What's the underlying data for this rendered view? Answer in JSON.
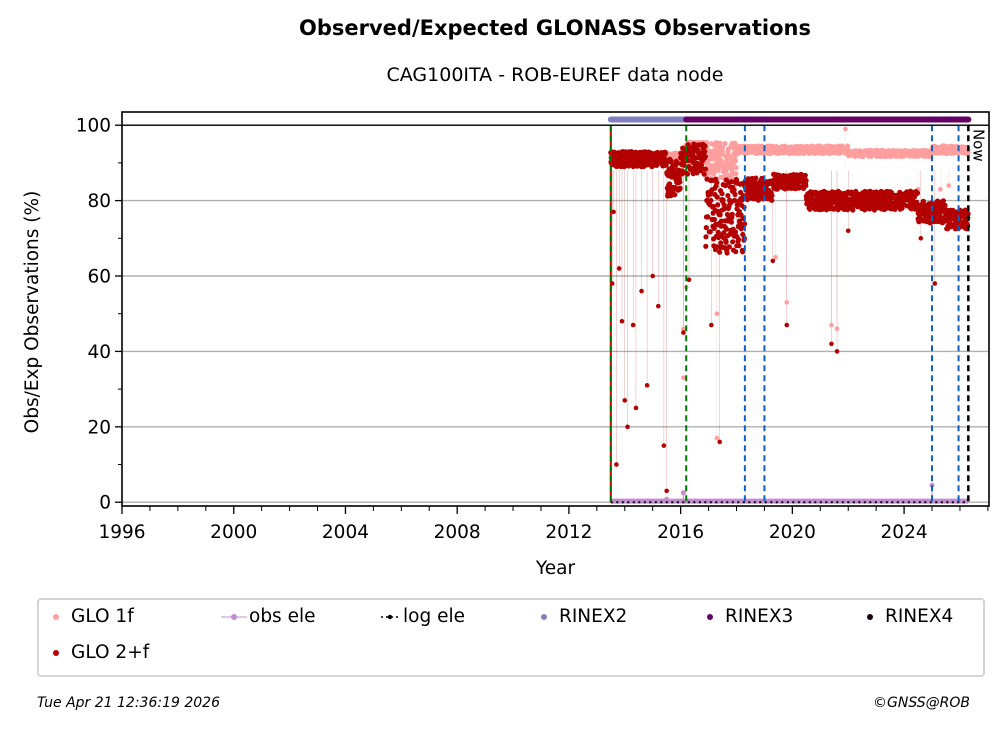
{
  "header": {
    "title": "Observed/Expected GLONASS Observations",
    "subtitle": "CAG100ITA - ROB-EUREF data node"
  },
  "footer": {
    "timestamp": "Tue Apr 21 12:36:19 2026",
    "copyright": "©GNSS@ROB"
  },
  "colors": {
    "glo1f": "#ff9e9e",
    "glo2f": "#b30000",
    "obs_ele": "#c38ccf",
    "log_ele": "#000000",
    "rinex2": "#8080c0",
    "rinex3": "#660066",
    "rinex4": "#1a001a",
    "receiver_change": "#007700",
    "antenna_change": "#1060c0",
    "grid": "#b0b0b0"
  },
  "chart_data": {
    "type": "scatter",
    "title": "Observed/Expected GLONASS Observations",
    "subtitle": "CAG100ITA - ROB-EUREF data node",
    "xlabel": "Year",
    "ylabel": "Obs/Exp Observations (%)",
    "xlim": [
      1996,
      2027.04
    ],
    "ylim": [
      -1,
      103.5
    ],
    "xticks": [
      "1996",
      "2000",
      "2004",
      "2008",
      "2012",
      "2016",
      "2020",
      "2024"
    ],
    "xtick_values": [
      1996,
      2000,
      2004,
      2008,
      2012,
      2016,
      2020,
      2024
    ],
    "yticks": [
      "0",
      "20",
      "40",
      "60",
      "80",
      "100"
    ],
    "ytick_values": [
      0,
      20,
      40,
      60,
      80,
      100
    ],
    "grid": "y",
    "now_label": "Now",
    "legend_position": "bottom",
    "legend": [
      {
        "key": "glo1f",
        "label": "GLO 1f"
      },
      {
        "key": "obs_ele",
        "label": "obs ele"
      },
      {
        "key": "log_ele",
        "label": "log ele"
      },
      {
        "key": "rinex2",
        "label": "RINEX2"
      },
      {
        "key": "rinex3",
        "label": "RINEX3"
      },
      {
        "key": "rinex4",
        "label": "RINEX4"
      },
      {
        "key": "glo2f",
        "label": "GLO 2+f"
      }
    ],
    "rinex_bars": [
      {
        "name": "RINEX2",
        "start": 2013.5,
        "end": 2016.2,
        "y": 101.5
      },
      {
        "name": "RINEX3",
        "start": 2016.2,
        "end": 2026.3,
        "y": 101.5
      }
    ],
    "event_lines": [
      {
        "type": "receiver",
        "x": 2013.5
      },
      {
        "type": "receiver",
        "x": 2016.2
      },
      {
        "type": "antenna",
        "x": 2018.3
      },
      {
        "type": "antenna",
        "x": 2019.0
      },
      {
        "type": "antenna",
        "x": 2025.0
      },
      {
        "type": "antenna",
        "x": 2025.95
      },
      {
        "type": "now",
        "x": 2026.3
      }
    ],
    "series": [
      {
        "name": "GLO 1f",
        "band_segments": [
          {
            "x0": 2013.5,
            "x1": 2016.2,
            "y": 91.5,
            "spread": 1.2
          },
          {
            "x0": 2016.2,
            "x1": 2016.9,
            "y": 94.5,
            "spread": 1.0
          },
          {
            "x0": 2016.9,
            "x1": 2018.0,
            "y": 90.5,
            "spread": 5.0
          },
          {
            "x0": 2018.0,
            "x1": 2022.0,
            "y": 93.5,
            "spread": 1.0
          },
          {
            "x0": 2022.0,
            "x1": 2025.0,
            "y": 92.5,
            "spread": 0.8
          },
          {
            "x0": 2025.0,
            "x1": 2026.3,
            "y": 93.5,
            "spread": 1.0
          }
        ],
        "outliers": [
          [
            2016.1,
            33
          ],
          [
            2016.1,
            46
          ],
          [
            2016.2,
            57
          ],
          [
            2017.3,
            17
          ],
          [
            2017.3,
            50
          ],
          [
            2019.4,
            65
          ],
          [
            2019.8,
            53
          ],
          [
            2021.4,
            47
          ],
          [
            2021.6,
            46
          ],
          [
            2021.9,
            99
          ],
          [
            2024.5,
            83
          ],
          [
            2025.3,
            83
          ],
          [
            2025.6,
            84
          ]
        ]
      },
      {
        "name": "GLO 2+f",
        "band_segments": [
          {
            "x0": 2013.5,
            "x1": 2015.5,
            "y": 91.0,
            "spread": 2.0
          },
          {
            "x0": 2015.5,
            "x1": 2016.0,
            "y": 86.0,
            "spread": 5.0
          },
          {
            "x0": 2016.0,
            "x1": 2016.9,
            "y": 91.0,
            "spread": 4.0
          },
          {
            "x0": 2016.9,
            "x1": 2018.3,
            "y": 76.0,
            "spread": 10.0
          },
          {
            "x0": 2018.3,
            "x1": 2019.3,
            "y": 83.0,
            "spread": 3.0
          },
          {
            "x0": 2019.3,
            "x1": 2020.5,
            "y": 85.0,
            "spread": 2.0
          },
          {
            "x0": 2020.5,
            "x1": 2024.5,
            "y": 80.0,
            "spread": 2.5
          },
          {
            "x0": 2024.5,
            "x1": 2025.5,
            "y": 77.0,
            "spread": 3.0
          },
          {
            "x0": 2025.5,
            "x1": 2026.3,
            "y": 75.0,
            "spread": 2.5
          }
        ],
        "outliers": [
          [
            2013.55,
            58
          ],
          [
            2013.6,
            77
          ],
          [
            2013.7,
            10
          ],
          [
            2013.8,
            62
          ],
          [
            2013.9,
            48
          ],
          [
            2014.0,
            27
          ],
          [
            2014.1,
            20
          ],
          [
            2014.3,
            47
          ],
          [
            2014.4,
            25
          ],
          [
            2014.6,
            56
          ],
          [
            2014.8,
            31
          ],
          [
            2015.0,
            60
          ],
          [
            2015.2,
            52
          ],
          [
            2015.4,
            15
          ],
          [
            2015.5,
            3
          ],
          [
            2016.1,
            45
          ],
          [
            2016.3,
            59
          ],
          [
            2017.1,
            47
          ],
          [
            2017.4,
            16
          ],
          [
            2018.0,
            68
          ],
          [
            2019.3,
            64
          ],
          [
            2019.8,
            47
          ],
          [
            2021.4,
            42
          ],
          [
            2021.6,
            40
          ],
          [
            2022.0,
            72
          ],
          [
            2024.6,
            70
          ],
          [
            2025.1,
            58
          ]
        ]
      },
      {
        "name": "obs ele",
        "y": 0.3,
        "x_range": [
          2013.5,
          2026.3
        ],
        "spikes": [
          [
            2015.5,
            0.8
          ],
          [
            2016.1,
            2.5
          ],
          [
            2025.0,
            4.5
          ]
        ]
      },
      {
        "name": "log ele",
        "y": 0,
        "x_range": [
          2013.5,
          2026.3
        ]
      }
    ]
  }
}
